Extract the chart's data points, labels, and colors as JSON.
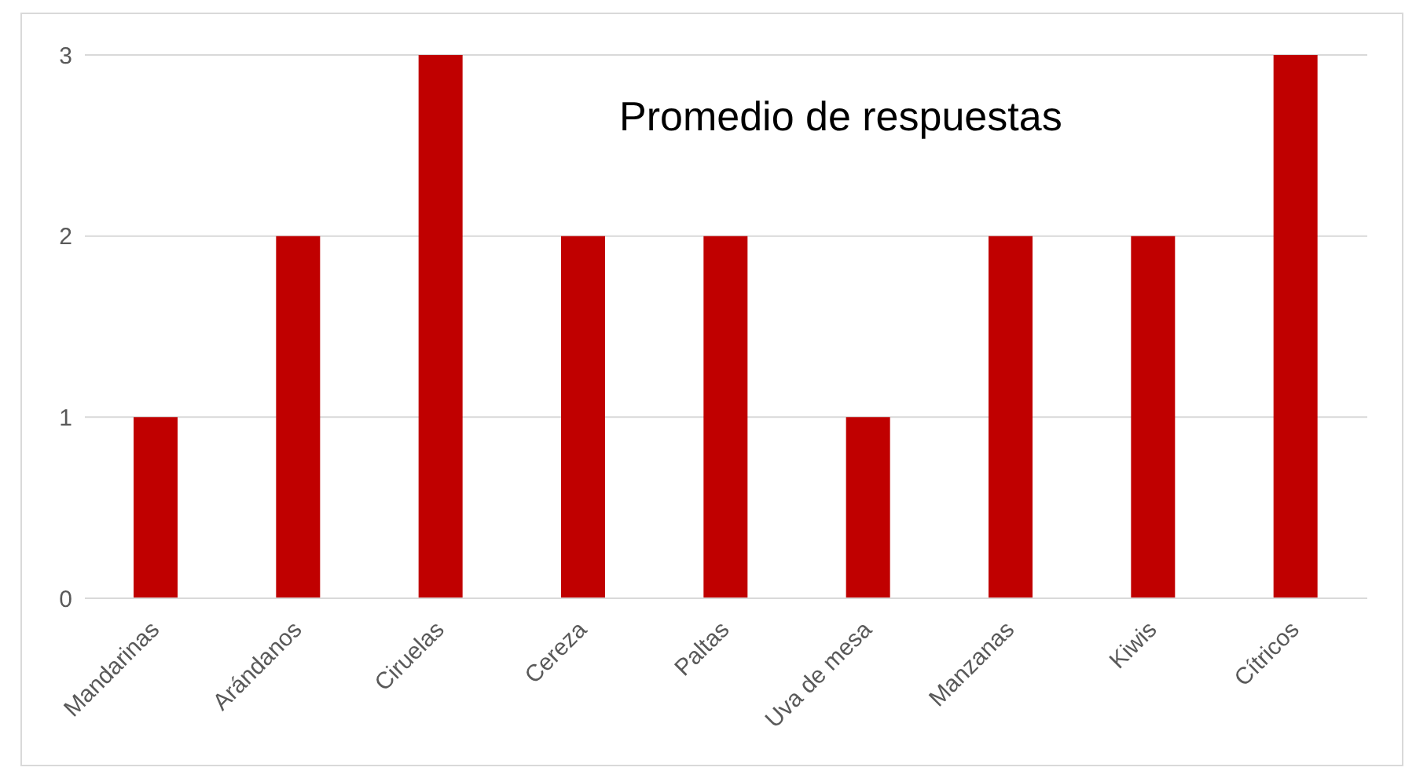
{
  "chart_data": {
    "type": "bar",
    "title": "Promedio de respuestas",
    "categories": [
      "Mandarinas",
      "Arándanos",
      "Ciruelas",
      "Cereza",
      "Paltas",
      "Uva de mesa",
      "Manzanas",
      "Kiwis",
      "Cítricos"
    ],
    "values": [
      1,
      2,
      3,
      2,
      2,
      1,
      2,
      2,
      3
    ],
    "color": "#c00000",
    "ylim": [
      0,
      3
    ],
    "yticks": [
      0,
      1,
      2,
      3
    ],
    "grid": "y",
    "legend": false
  }
}
